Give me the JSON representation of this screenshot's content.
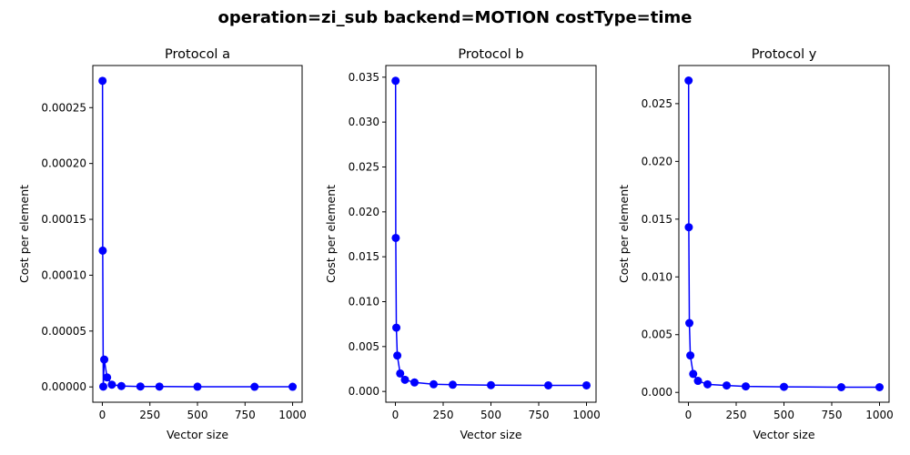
{
  "figure": {
    "title": "operation=zi_sub backend=MOTION costType=time"
  },
  "chart_data": [
    {
      "type": "line",
      "title": "Protocol a",
      "xlabel": "Vector size",
      "ylabel": "Cost per element",
      "xlim": [
        -50,
        1050
      ],
      "ylim": [
        -1.37e-05,
        0.0002877
      ],
      "xticks": [
        0,
        250,
        500,
        750,
        1000
      ],
      "xtick_labels": [
        "0",
        "250",
        "500",
        "750",
        "1000"
      ],
      "yticks": [
        0,
        5e-05,
        0.0001,
        0.00015,
        0.0002,
        0.00025
      ],
      "ytick_labels": [
        "0.00000",
        "0.00005",
        "0.00010",
        "0.00015",
        "0.00020",
        "0.00025"
      ],
      "grid": false,
      "color": "#0000ff",
      "x": [
        1,
        2,
        5,
        10,
        25,
        50,
        100,
        200,
        300,
        500,
        800,
        1000
      ],
      "y": [
        0.000274,
        0.000122,
        3e-07,
        2.45e-05,
        8.5e-06,
        2e-06,
        8e-07,
        4e-07,
        3e-07,
        2e-07,
        1e-07,
        1e-07
      ]
    },
    {
      "type": "line",
      "title": "Protocol b",
      "xlabel": "Vector size",
      "ylabel": "Cost per element",
      "xlim": [
        -50,
        1050
      ],
      "ylim": [
        -0.0012,
        0.0363
      ],
      "xticks": [
        0,
        250,
        500,
        750,
        1000
      ],
      "xtick_labels": [
        "0",
        "250",
        "500",
        "750",
        "1000"
      ],
      "yticks": [
        0,
        0.005,
        0.01,
        0.015,
        0.02,
        0.025,
        0.03,
        0.035
      ],
      "ytick_labels": [
        "0.000",
        "0.005",
        "0.010",
        "0.015",
        "0.020",
        "0.025",
        "0.030",
        "0.035"
      ],
      "grid": false,
      "color": "#0000ff",
      "x": [
        1,
        2,
        5,
        10,
        25,
        50,
        100,
        200,
        300,
        500,
        800,
        1000
      ],
      "y": [
        0.0346,
        0.0171,
        0.0071,
        0.004,
        0.002,
        0.0013,
        0.001,
        0.0008,
        0.00075,
        0.0007,
        0.00068,
        0.00068
      ]
    },
    {
      "type": "line",
      "title": "Protocol y",
      "xlabel": "Vector size",
      "ylabel": "Cost per element",
      "xlim": [
        -50,
        1050
      ],
      "ylim": [
        -0.00085,
        0.0283
      ],
      "xticks": [
        0,
        250,
        500,
        750,
        1000
      ],
      "xtick_labels": [
        "0",
        "250",
        "500",
        "750",
        "1000"
      ],
      "yticks": [
        0,
        0.005,
        0.01,
        0.015,
        0.02,
        0.025
      ],
      "ytick_labels": [
        "0.000",
        "0.005",
        "0.010",
        "0.015",
        "0.020",
        "0.025"
      ],
      "grid": false,
      "color": "#0000ff",
      "x": [
        1,
        2,
        5,
        10,
        25,
        50,
        100,
        200,
        300,
        500,
        800,
        1000
      ],
      "y": [
        0.027,
        0.0143,
        0.006,
        0.0032,
        0.0016,
        0.001,
        0.0007,
        0.0006,
        0.00052,
        0.00048,
        0.00045,
        0.00045
      ]
    }
  ]
}
